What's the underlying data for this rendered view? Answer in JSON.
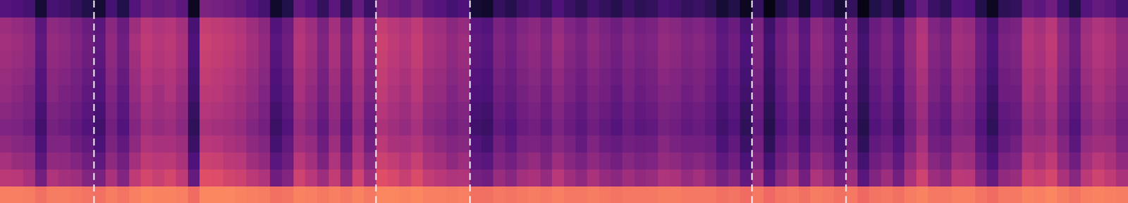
{
  "chart_data": {
    "type": "heatmap",
    "xlim": [
      0,
      96
    ],
    "ylim": [
      0,
      12
    ],
    "zlim": [
      0,
      120
    ],
    "grid": false,
    "tick_labels": false,
    "vlines": [
      8,
      32,
      40,
      64,
      72
    ],
    "cells": [
      [
        88,
        88,
        87,
        84,
        87,
        87,
        86,
        85,
        84,
        87,
        85,
        88,
        90,
        89,
        89,
        88,
        83,
        90,
        90,
        90,
        89,
        88,
        87,
        84,
        85,
        89,
        88,
        86,
        88,
        86,
        89,
        86,
        90,
        90,
        89,
        90,
        88,
        88,
        87,
        88,
        84,
        84,
        86,
        85,
        86,
        87,
        86,
        88,
        86,
        86,
        87,
        86,
        85,
        86,
        86,
        86,
        87,
        87,
        86,
        86,
        86,
        84,
        85,
        83,
        86,
        82,
        85,
        86,
        84,
        87,
        86,
        84,
        86,
        82,
        85,
        86,
        84,
        87,
        89,
        86,
        86,
        88,
        88,
        85,
        83,
        86,
        86,
        89,
        88,
        90,
        87,
        85,
        88,
        89,
        88,
        87
      ],
      [
        62,
        61,
        56,
        41,
        58,
        55,
        53,
        46,
        43,
        57,
        46,
        63,
        70,
        66,
        70,
        63,
        37,
        74,
        73,
        69,
        67,
        62,
        58,
        40,
        46,
        68,
        61,
        53,
        64,
        49,
        68,
        54,
        74,
        71,
        66,
        72,
        64,
        61,
        58,
        59,
        42,
        40,
        52,
        47,
        55,
        57,
        51,
        61,
        54,
        49,
        57,
        51,
        48,
        54,
        50,
        52,
        58,
        57,
        51,
        55,
        49,
        42,
        47,
        36,
        53,
        33,
        47,
        55,
        41,
        58,
        52,
        41,
        53,
        33,
        46,
        53,
        41,
        57,
        68,
        53,
        50,
        62,
        61,
        46,
        37,
        50,
        52,
        67,
        65,
        70,
        57,
        47,
        62,
        68,
        63,
        57
      ],
      [
        56,
        52,
        51,
        34,
        50,
        49,
        46,
        40,
        35,
        49,
        41,
        55,
        63,
        61,
        62,
        57,
        30,
        67,
        66,
        62,
        61,
        54,
        50,
        33,
        39,
        61,
        55,
        44,
        58,
        43,
        60,
        47,
        67,
        64,
        60,
        66,
        57,
        55,
        49,
        53,
        35,
        33,
        45,
        41,
        47,
        51,
        44,
        53,
        47,
        43,
        49,
        45,
        41,
        47,
        43,
        45,
        51,
        49,
        45,
        47,
        43,
        35,
        40,
        29,
        45,
        27,
        40,
        47,
        35,
        50,
        45,
        34,
        45,
        27,
        40,
        45,
        35,
        51,
        60,
        47,
        43,
        55,
        53,
        40,
        30,
        43,
        45,
        61,
        57,
        63,
        50,
        40,
        55,
        61,
        57,
        50
      ],
      [
        50,
        47,
        46,
        29,
        45,
        45,
        39,
        36,
        29,
        44,
        36,
        49,
        58,
        56,
        56,
        53,
        24,
        61,
        60,
        57,
        55,
        49,
        46,
        27,
        36,
        54,
        51,
        39,
        53,
        37,
        56,
        41,
        62,
        57,
        56,
        59,
        53,
        49,
        46,
        47,
        31,
        27,
        41,
        35,
        43,
        44,
        41,
        47,
        43,
        37,
        45,
        39,
        37,
        41,
        39,
        40,
        47,
        43,
        41,
        41,
        39,
        29,
        36,
        24,
        41,
        21,
        36,
        41,
        31,
        44,
        41,
        29,
        41,
        21,
        36,
        39,
        31,
        44,
        56,
        41,
        39,
        49,
        49,
        34,
        26,
        37,
        41,
        54,
        53,
        57,
        46,
        34,
        51,
        54,
        53,
        44
      ],
      [
        45,
        44,
        40,
        26,
        42,
        39,
        36,
        31,
        26,
        41,
        31,
        46,
        54,
        51,
        53,
        48,
        21,
        57,
        55,
        54,
        51,
        46,
        41,
        24,
        31,
        51,
        46,
        36,
        48,
        34,
        51,
        38,
        57,
        54,
        51,
        56,
        48,
        46,
        41,
        44,
        26,
        24,
        36,
        32,
        38,
        41,
        36,
        44,
        38,
        34,
        40,
        36,
        32,
        38,
        34,
        36,
        42,
        40,
        36,
        38,
        34,
        26,
        31,
        21,
        36,
        18,
        31,
        38,
        26,
        41,
        36,
        26,
        36,
        18,
        31,
        36,
        26,
        41,
        51,
        38,
        34,
        46,
        44,
        31,
        21,
        34,
        36,
        51,
        48,
        54,
        41,
        31,
        46,
        51,
        48,
        41
      ],
      [
        48,
        46,
        43,
        28,
        44,
        42,
        38,
        33,
        28,
        43,
        33,
        48,
        56,
        53,
        55,
        50,
        23,
        60,
        58,
        56,
        53,
        48,
        43,
        26,
        33,
        53,
        48,
        38,
        50,
        36,
        53,
        40,
        60,
        56,
        53,
        58,
        50,
        48,
        43,
        46,
        28,
        26,
        38,
        34,
        40,
        43,
        38,
        46,
        40,
        36,
        42,
        38,
        34,
        40,
        36,
        38,
        44,
        42,
        38,
        40,
        36,
        28,
        33,
        23,
        38,
        20,
        33,
        40,
        28,
        43,
        38,
        28,
        38,
        20,
        33,
        38,
        28,
        43,
        53,
        40,
        36,
        48,
        46,
        33,
        23,
        36,
        38,
        53,
        50,
        56,
        43,
        33,
        48,
        53,
        50,
        43
      ],
      [
        51,
        48,
        44,
        31,
        47,
        43,
        41,
        35,
        31,
        45,
        35,
        51,
        58,
        54,
        58,
        52,
        26,
        62,
        61,
        58,
        55,
        51,
        45,
        29,
        35,
        56,
        50,
        41,
        52,
        39,
        55,
        43,
        63,
        58,
        55,
        61,
        52,
        51,
        45,
        49,
        30,
        29,
        40,
        37,
        42,
        46,
        40,
        48,
        43,
        38,
        44,
        41,
        36,
        43,
        38,
        41,
        46,
        45,
        40,
        43,
        38,
        31,
        35,
        26,
        40,
        23,
        35,
        43,
        30,
        46,
        40,
        31,
        40,
        23,
        35,
        41,
        30,
        46,
        55,
        43,
        38,
        51,
        48,
        36,
        25,
        39,
        40,
        56,
        52,
        59,
        45,
        36,
        50,
        56,
        52,
        46
      ],
      [
        52,
        50,
        47,
        32,
        48,
        46,
        42,
        37,
        32,
        47,
        37,
        52,
        60,
        57,
        59,
        54,
        27,
        64,
        62,
        60,
        57,
        52,
        47,
        30,
        37,
        57,
        52,
        42,
        54,
        40,
        57,
        44,
        64,
        60,
        57,
        62,
        54,
        52,
        47,
        50,
        32,
        30,
        42,
        38,
        44,
        47,
        42,
        50,
        44,
        40,
        46,
        42,
        38,
        44,
        40,
        42,
        48,
        46,
        42,
        44,
        40,
        32,
        37,
        27,
        42,
        24,
        37,
        44,
        32,
        47,
        42,
        32,
        42,
        24,
        37,
        42,
        32,
        47,
        57,
        44,
        40,
        52,
        50,
        37,
        27,
        40,
        42,
        57,
        54,
        60,
        47,
        37,
        52,
        57,
        54,
        47
      ],
      [
        54,
        52,
        49,
        34,
        50,
        48,
        44,
        39,
        34,
        49,
        39,
        54,
        62,
        59,
        61,
        56,
        29,
        66,
        64,
        62,
        59,
        54,
        49,
        32,
        39,
        59,
        54,
        44,
        56,
        42,
        59,
        46,
        66,
        62,
        59,
        64,
        56,
        54,
        49,
        52,
        34,
        32,
        44,
        40,
        46,
        49,
        44,
        52,
        46,
        42,
        48,
        44,
        40,
        46,
        42,
        44,
        50,
        48,
        44,
        46,
        42,
        34,
        39,
        29,
        44,
        26,
        39,
        46,
        34,
        49,
        44,
        34,
        44,
        26,
        39,
        44,
        34,
        49,
        59,
        46,
        42,
        54,
        52,
        39,
        29,
        42,
        44,
        59,
        56,
        62,
        49,
        39,
        54,
        59,
        56,
        49
      ],
      [
        55,
        53,
        50,
        35,
        51,
        49,
        45,
        40,
        35,
        50,
        40,
        56,
        63,
        60,
        62,
        57,
        30,
        67,
        65,
        63,
        60,
        55,
        50,
        33,
        40,
        60,
        55,
        45,
        57,
        43,
        60,
        47,
        67,
        63,
        60,
        65,
        57,
        55,
        50,
        53,
        35,
        33,
        45,
        41,
        47,
        50,
        45,
        53,
        47,
        43,
        49,
        45,
        41,
        47,
        43,
        45,
        51,
        49,
        45,
        47,
        43,
        35,
        40,
        30,
        45,
        27,
        40,
        47,
        35,
        50,
        45,
        35,
        45,
        27,
        40,
        45,
        35,
        50,
        60,
        47,
        43,
        55,
        53,
        40,
        30,
        43,
        45,
        60,
        57,
        63,
        50,
        40,
        55,
        60,
        57,
        50
      ],
      [
        53,
        51,
        48,
        33,
        49,
        47,
        43,
        38,
        33,
        48,
        38,
        53,
        61,
        58,
        60,
        55,
        28,
        65,
        63,
        61,
        58,
        53,
        48,
        31,
        38,
        58,
        53,
        43,
        55,
        41,
        58,
        45,
        65,
        61,
        58,
        63,
        55,
        53,
        48,
        51,
        33,
        31,
        43,
        39,
        45,
        48,
        43,
        51,
        45,
        41,
        47,
        43,
        39,
        45,
        41,
        43,
        49,
        47,
        43,
        45,
        41,
        33,
        38,
        28,
        43,
        25,
        38,
        45,
        33,
        48,
        43,
        33,
        43,
        25,
        38,
        43,
        33,
        48,
        58,
        45,
        41,
        53,
        51,
        38,
        28,
        41,
        43,
        58,
        55,
        61,
        48,
        38,
        53,
        58,
        55,
        48
      ],
      [
        32,
        30,
        27,
        12,
        28,
        26,
        22,
        17,
        12,
        27,
        17,
        32,
        40,
        37,
        39,
        34,
        7,
        44,
        42,
        40,
        37,
        32,
        27,
        10,
        17,
        37,
        32,
        22,
        34,
        20,
        37,
        24,
        44,
        40,
        37,
        42,
        34,
        32,
        27,
        30,
        12,
        10,
        22,
        18,
        24,
        27,
        22,
        30,
        24,
        20,
        26,
        22,
        18,
        24,
        20,
        22,
        28,
        26,
        22,
        24,
        20,
        12,
        17,
        7,
        22,
        4,
        17,
        24,
        12,
        27,
        22,
        12,
        22,
        4,
        17,
        22,
        12,
        27,
        37,
        24,
        20,
        32,
        30,
        17,
        7,
        20,
        22,
        37,
        34,
        40,
        27,
        17,
        32,
        37,
        34,
        27
      ]
    ]
  }
}
